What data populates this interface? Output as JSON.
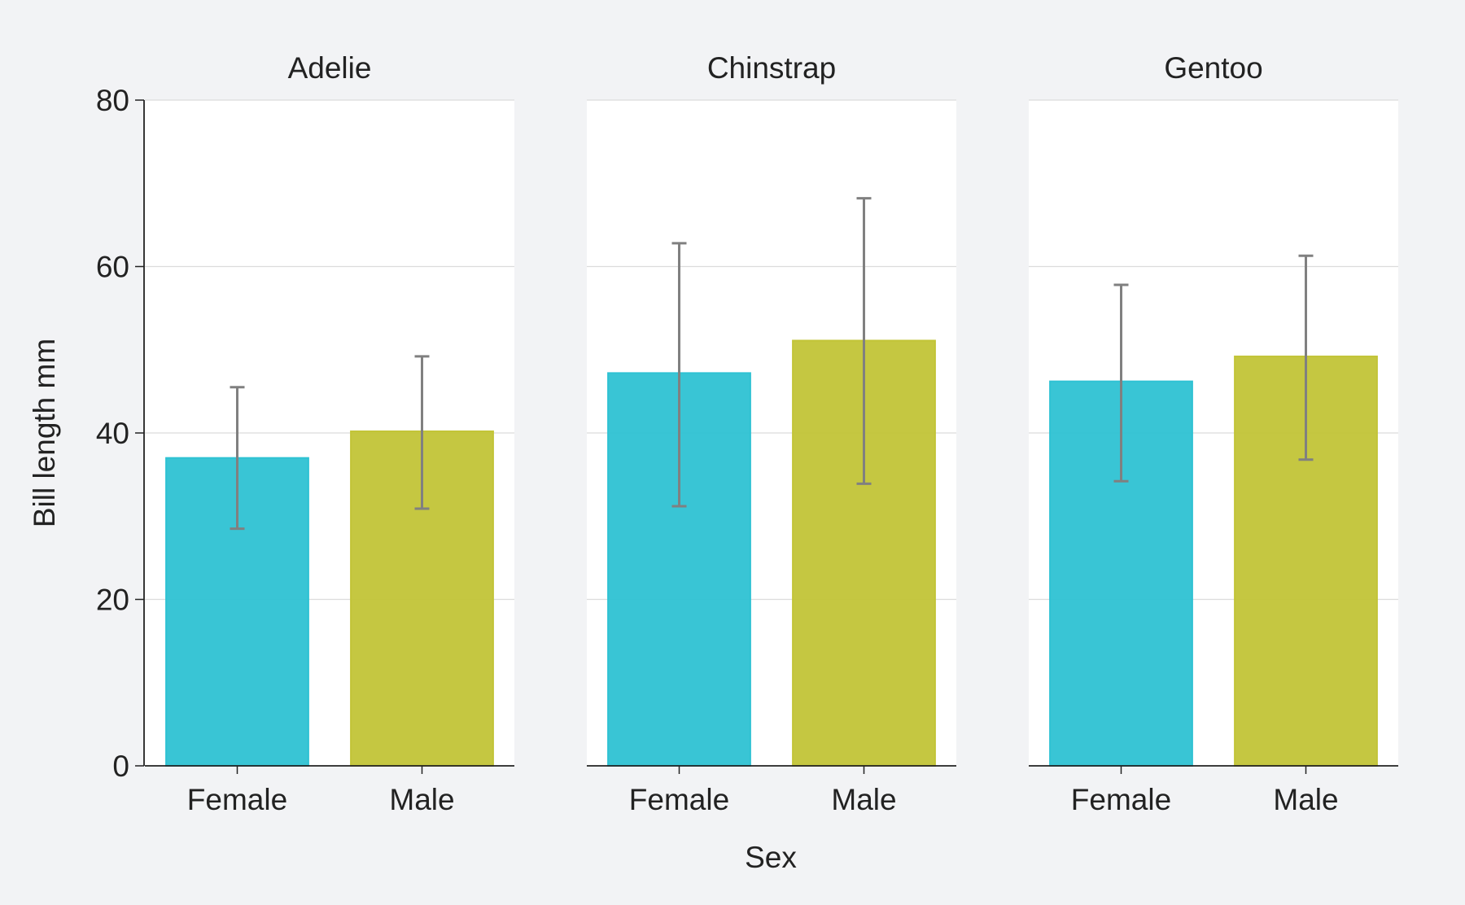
{
  "chart_data": {
    "type": "bar",
    "facet_variable": "species",
    "facets": [
      {
        "title": "Adelie",
        "categories": [
          "Female",
          "Male"
        ],
        "values": [
          37.0,
          40.2
        ],
        "error_low": [
          28.5,
          30.9
        ],
        "error_high": [
          45.5,
          49.2
        ]
      },
      {
        "title": "Chinstrap",
        "categories": [
          "Female",
          "Male"
        ],
        "values": [
          47.2,
          51.1
        ],
        "error_low": [
          31.2,
          33.9
        ],
        "error_high": [
          62.8,
          68.2
        ]
      },
      {
        "title": "Gentoo",
        "categories": [
          "Female",
          "Male"
        ],
        "values": [
          46.2,
          49.2
        ],
        "error_low": [
          34.2,
          36.8
        ],
        "error_high": [
          57.8,
          61.3
        ]
      }
    ],
    "xlabel": "Sex",
    "ylabel": "Bill length mm",
    "ylim": [
      0,
      80
    ],
    "yticks": [
      0,
      20,
      40,
      60,
      80
    ],
    "grid": true,
    "colors": {
      "Female": "#2ec2d3",
      "Male": "#c2c437",
      "error_bar": "#808080"
    },
    "background": "#f2f3f5",
    "panel_background": "#ffffff"
  }
}
